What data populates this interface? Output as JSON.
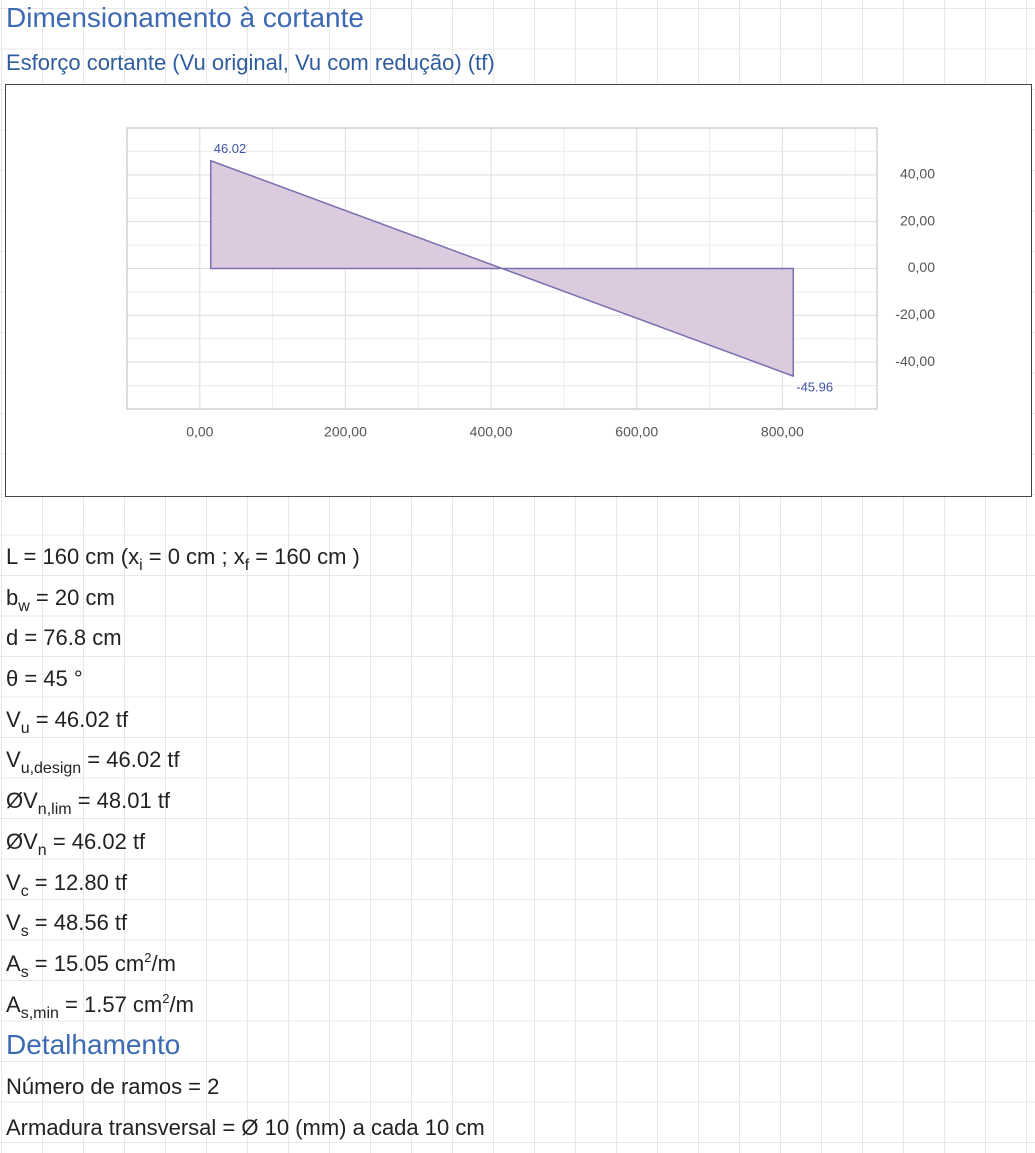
{
  "header": {
    "title": "Dimensionamento à cortante",
    "subtitle": "Esforço cortante (Vu original, Vu com redução) (tf)"
  },
  "chart_data": {
    "type": "area",
    "x": [
      15,
      815
    ],
    "values": [
      46.02,
      -45.96
    ],
    "xlim": [
      -100,
      930
    ],
    "ylim": [
      -60,
      60
    ],
    "xticks": [
      {
        "value": 0,
        "label": "0,00"
      },
      {
        "value": 200,
        "label": "200,00"
      },
      {
        "value": 400,
        "label": "400,00"
      },
      {
        "value": 600,
        "label": "600,00"
      },
      {
        "value": 800,
        "label": "800,00"
      }
    ],
    "yticks": [
      {
        "value": 40,
        "label": "40,00"
      },
      {
        "value": 20,
        "label": "20,00"
      },
      {
        "value": 0,
        "label": "0,00"
      },
      {
        "value": -20,
        "label": "-20,00"
      },
      {
        "value": -40,
        "label": "-40,00"
      }
    ],
    "y_axis_side": "right",
    "color": "#dccbdf",
    "line_color": "#7a70b0",
    "label_color": "#3d55a3",
    "grid": true,
    "minor_grid": true,
    "data_labels": true
  },
  "lines": [
    [
      {
        "text": "L = 160 cm (x"
      },
      {
        "sub": "i"
      },
      {
        "text": " = 0 cm ; x"
      },
      {
        "sub": "f"
      },
      {
        "text": " = 160 cm )"
      }
    ],
    [
      {
        "text": "b"
      },
      {
        "sub": "w"
      },
      {
        "text": " = 20 cm"
      }
    ],
    [
      {
        "text": "d = 76.8 cm"
      }
    ],
    [
      {
        "text": "θ = 45 °"
      }
    ],
    [
      {
        "text": "V"
      },
      {
        "sub": "u"
      },
      {
        "text": " = 46.02 tf"
      }
    ],
    [
      {
        "text": "V"
      },
      {
        "sub": "u,design"
      },
      {
        "text": " = 46.02 tf"
      }
    ],
    [
      {
        "text": "ØV"
      },
      {
        "sub": "n,lim"
      },
      {
        "text": " = 48.01 tf"
      }
    ],
    [
      {
        "text": "ØV"
      },
      {
        "sub": "n"
      },
      {
        "text": " = 46.02 tf"
      }
    ],
    [
      {
        "text": "V"
      },
      {
        "sub": "c"
      },
      {
        "text": " = 12.80 tf"
      }
    ],
    [
      {
        "text": "V"
      },
      {
        "sub": "s"
      },
      {
        "text": " = 48.56 tf"
      }
    ],
    [
      {
        "text": "A"
      },
      {
        "sub": "s"
      },
      {
        "text": " = 15.05 cm"
      },
      {
        "sup": "2"
      },
      {
        "text": "/m"
      }
    ],
    [
      {
        "text": "A"
      },
      {
        "sub": "s,min"
      },
      {
        "text": " = 1.57 cm"
      },
      {
        "sup": "2"
      },
      {
        "text": "/m"
      }
    ]
  ],
  "detail": {
    "title": "Detalhamento",
    "lines": [
      "Número de ramos = 2",
      "Armadura transversal = Ø 10 (mm) a cada 10 cm"
    ]
  }
}
